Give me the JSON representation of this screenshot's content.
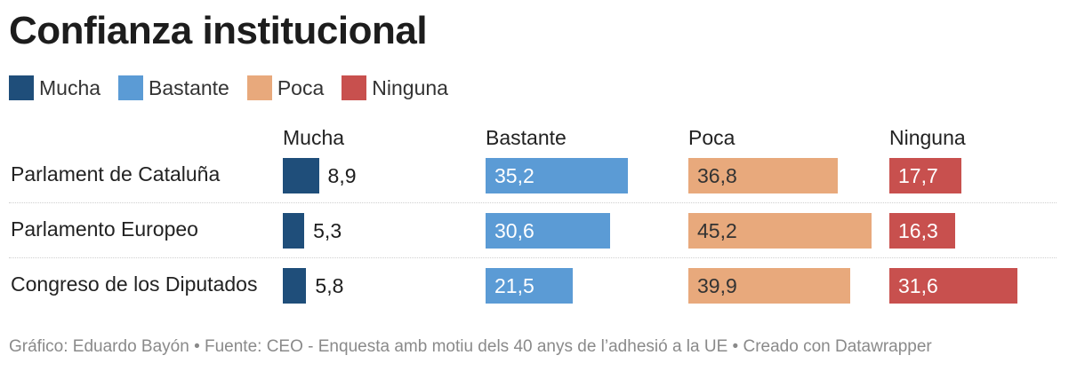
{
  "title": "Confianza institucional",
  "footer": "Gráfico: Eduardo Bayón • Fuente: CEO - Enquesta amb motiu dels 40 anys de l’adhesió a la UE • Creado con Datawrapper",
  "colors": {
    "Mucha": "#1f4e7a",
    "Bastante": "#5b9bd5",
    "Poca": "#e8a97c",
    "Ninguna": "#c8504e"
  },
  "chart_data": {
    "type": "bar",
    "title": "Confianza institucional",
    "legend": [
      "Mucha",
      "Bastante",
      "Poca",
      "Ninguna"
    ],
    "categories": [
      "Parlament de Cataluña",
      "Parlamento Europeo",
      "Congreso de los Diputados"
    ],
    "series": [
      {
        "name": "Mucha",
        "values": [
          8.9,
          5.3,
          5.8
        ],
        "labels": [
          "8,9",
          "5,3",
          "5,8"
        ]
      },
      {
        "name": "Bastante",
        "values": [
          35.2,
          30.6,
          21.5
        ],
        "labels": [
          "35,2",
          "30,6",
          "21,5"
        ]
      },
      {
        "name": "Poca",
        "values": [
          36.8,
          45.2,
          39.9
        ],
        "labels": [
          "36,8",
          "45,2",
          "39,9"
        ]
      },
      {
        "name": "Ninguna",
        "values": [
          17.7,
          16.3,
          31.6
        ],
        "labels": [
          "17,7",
          "16,3",
          "31,6"
        ]
      }
    ],
    "xlim": [
      0,
      45.2
    ],
    "grid": false,
    "legend_placement": "top-left"
  }
}
